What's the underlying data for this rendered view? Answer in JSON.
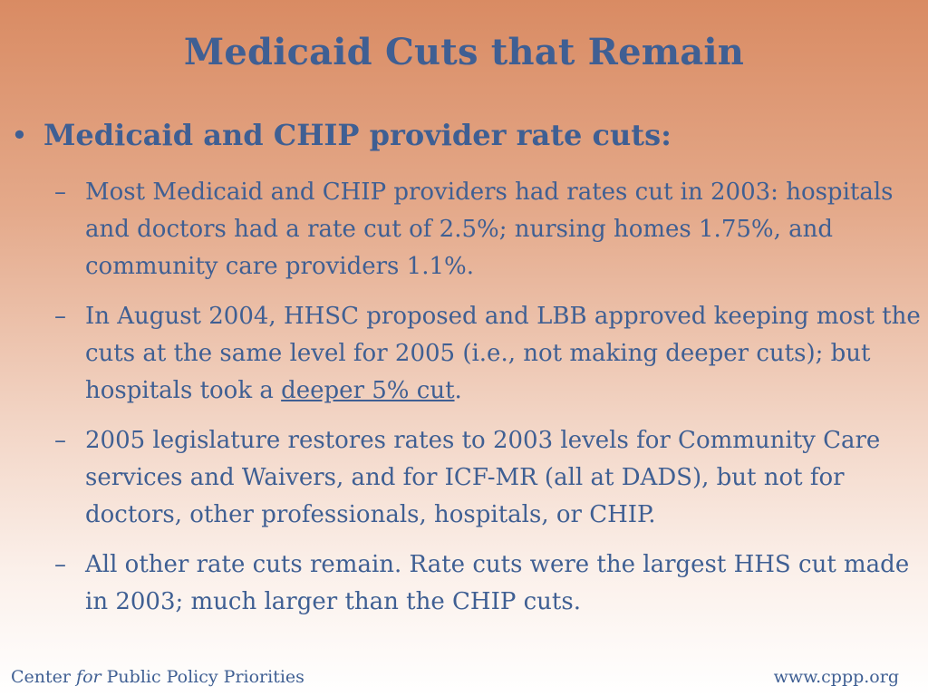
{
  "slide": {
    "title": "Medicaid Cuts that Remain",
    "bullet": {
      "marker": "•",
      "text": "Medicaid and CHIP provider rate cuts:"
    },
    "subbullets": [
      {
        "dash": "–",
        "text": "Most Medicaid and CHIP providers had rates cut in 2003: hospitals and doctors had a rate cut of 2.5%; nursing homes 1.75%, and community care providers 1.1%."
      },
      {
        "dash": "–",
        "text_before": "In August 2004, HHSC proposed and LBB approved keeping most the cuts at the same level for 2005 (i.e., not making deeper cuts); but hospitals took a ",
        "underlined": "deeper 5% cut",
        "text_after": "."
      },
      {
        "dash": "–",
        "text": "2005 legislature restores rates to 2003 levels for Community Care services and Waivers, and for ICF-MR (all at DADS), but not for doctors, other professionals, hospitals, or CHIP."
      },
      {
        "dash": "–",
        "text": "All other rate cuts remain.  Rate cuts were the largest HHS cut made in 2003; much larger than the CHIP cuts."
      }
    ]
  },
  "footer": {
    "org_prefix": "Center ",
    "org_for": "for",
    "org_suffix": " Public Policy Priorities",
    "url": "www.cppp.org"
  }
}
